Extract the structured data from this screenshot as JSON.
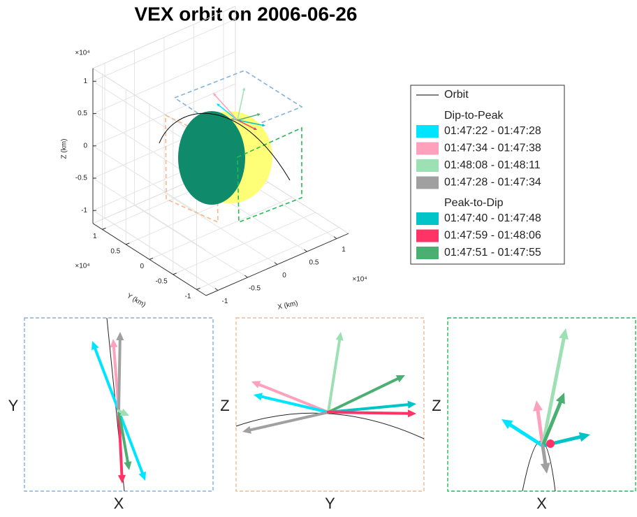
{
  "chart_data": {
    "type": "orbit3d",
    "title": "VEX orbit on 2006-06-26",
    "xlabel": "X (km)",
    "ylabel": "Y (km)",
    "zlabel": "Z (km)",
    "xmultiplier": "×10⁴",
    "ymultiplier": "×10⁴",
    "zmultiplier": "×10⁴",
    "xlim": [
      -1.2,
      1.2
    ],
    "ylim": [
      -1.2,
      1.2
    ],
    "zlim": [
      -1.2,
      1.2
    ],
    "xticks": [
      -1,
      -0.5,
      0,
      0.5,
      1
    ],
    "yticks": [
      -1,
      -0.5,
      0,
      0.5,
      1
    ],
    "zticks": [
      -1,
      -0.5,
      0,
      0.5,
      1
    ],
    "grid": true,
    "orbit": {
      "name": "Orbit",
      "color": "#000000"
    },
    "groups": [
      {
        "name": "Dip-to-Peak",
        "series": [
          {
            "name": "01:47:22 - 01:47:28",
            "color": "#00e5ff"
          },
          {
            "name": "01:47:34 - 01:47:38",
            "color": "#ffa0bc"
          },
          {
            "name": "01:48:08 - 01:48:11",
            "color": "#9de0b4"
          },
          {
            "name": "01:47:28 - 01:47:34",
            "color": "#a0a0a0"
          }
        ]
      },
      {
        "name": "Peak-to-Dip",
        "series": [
          {
            "name": "01:47:40 - 01:47:48",
            "color": "#00c4c8"
          },
          {
            "name": "01:47:59 - 01:48:06",
            "color": "#ff3366"
          },
          {
            "name": "01:47:51 - 01:47:55",
            "color": "#4caf72"
          }
        ]
      }
    ],
    "insets": [
      {
        "xlabel": "X",
        "ylabel": "Y",
        "color": "#7fb2e0"
      },
      {
        "xlabel": "Y",
        "ylabel": "Z",
        "color": "#f5b88a"
      },
      {
        "xlabel": "X",
        "ylabel": "Z",
        "color": "#22bb55"
      }
    ]
  }
}
